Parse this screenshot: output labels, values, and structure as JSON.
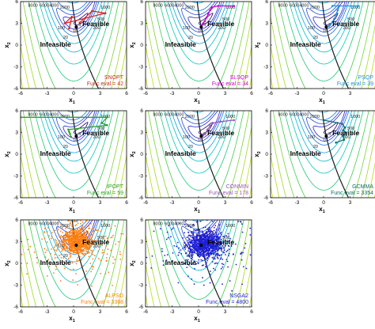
{
  "chart_data": [
    {
      "type": "line",
      "algorithm": "SNOPT",
      "func_eval_text": "Func eval = 42",
      "color": "#d62728",
      "path": [
        [
          0.7,
          3.1
        ],
        [
          2.1,
          4.7
        ],
        [
          3.6,
          4.4
        ],
        [
          -1.0,
          3.0
        ],
        [
          -0.2,
          3.9
        ],
        [
          -0.5,
          2.3
        ]
      ],
      "scatter": []
    },
    {
      "type": "line",
      "algorithm": "SLSQP",
      "func_eval_text": "Func eval = 34",
      "color": "#cc00cc",
      "path": [
        [
          4.0,
          5.4
        ],
        [
          2.2,
          5.4
        ],
        [
          1.5,
          5.2
        ],
        [
          1.3,
          4.8
        ],
        [
          1.1,
          4.3
        ],
        [
          0.9,
          3.8
        ],
        [
          0.7,
          3.3
        ],
        [
          0.5,
          3.0
        ],
        [
          0.3,
          2.7
        ]
      ],
      "scatter": []
    },
    {
      "type": "line",
      "algorithm": "PSQP",
      "func_eval_text": "Func eval = 39",
      "color": "#1f8fe0",
      "path": [
        [
          3.9,
          5.4
        ],
        [
          1.0,
          5.4
        ],
        [
          1.8,
          5.4
        ],
        [
          1.6,
          4.8
        ],
        [
          1.4,
          4.2
        ],
        [
          1.2,
          3.6
        ],
        [
          1.0,
          3.2
        ],
        [
          0.8,
          2.9
        ],
        [
          0.6,
          2.6
        ]
      ],
      "scatter": []
    },
    {
      "type": "line",
      "algorithm": "IPOPT",
      "func_eval_text": "Func eval = 59",
      "color": "#2ca02c",
      "path": [
        [
          -6.0,
          5.1
        ],
        [
          3.8,
          5.1
        ],
        [
          3.2,
          4.3
        ],
        [
          3.8,
          4.0
        ],
        [
          -0.6,
          3.4
        ],
        [
          -0.5,
          3.1
        ],
        [
          -0.4,
          2.8
        ],
        [
          -0.3,
          2.4
        ]
      ],
      "scatter": []
    },
    {
      "type": "line",
      "algorithm": "CONMIN",
      "func_eval_text": "Func eval = 178",
      "color": "#9b59b6",
      "path": [
        [
          4.0,
          4.7
        ],
        [
          2.5,
          4.5
        ],
        [
          1.6,
          4.3
        ],
        [
          1.3,
          3.9
        ],
        [
          1.0,
          3.4
        ],
        [
          0.8,
          2.9
        ],
        [
          0.5,
          2.6
        ],
        [
          0.3,
          2.3
        ]
      ],
      "scatter": []
    },
    {
      "type": "line",
      "algorithm": "GCMMA",
      "func_eval_text": "Func eval = 3354",
      "color": "#0e6b6b",
      "path": [
        [
          0.0,
          4.7
        ],
        [
          2.1,
          4.2
        ],
        [
          2.4,
          3.7
        ],
        [
          2.2,
          3.3
        ],
        [
          2.5,
          3.0
        ],
        [
          2.2,
          2.5
        ],
        [
          2.3,
          2.0
        ],
        [
          1.4,
          1.6
        ]
      ],
      "scatter": []
    },
    {
      "type": "scatter",
      "algorithm": "ALPSO",
      "func_eval_text": "Func eval = 3368",
      "color": "#ff7f0e",
      "path": [],
      "scatter": {
        "count": 700,
        "center": [
          0.4,
          3.0
        ],
        "spread": [
          1.4,
          1.4
        ],
        "wide_count": 260,
        "wide_spread": [
          3.8,
          3.8
        ]
      }
    },
    {
      "type": "scatter",
      "algorithm": "NSGA2",
      "func_eval_text": "Func eval = 4800",
      "color": "#1f1fd6",
      "path": [],
      "scatter": {
        "count": 900,
        "center": [
          0.8,
          2.6
        ],
        "spread": [
          1.6,
          1.5
        ],
        "wide_count": 220,
        "wide_spread": [
          4.0,
          4.0
        ]
      }
    }
  ],
  "shared_axes": {
    "xlabel": "x",
    "xlabel_sub": "1",
    "ylabel": "x",
    "ylabel_sub": "2",
    "xlim": [
      -6,
      6
    ],
    "ylim": [
      -6,
      6
    ],
    "xticks": [
      -6,
      -3,
      0,
      3,
      6
    ],
    "yticks": [
      -6,
      -3,
      0,
      3,
      6
    ],
    "feasible_label": "Feasible",
    "infeasible_label": "Infeasible",
    "contour_levels": [
      1,
      5,
      10,
      20,
      50,
      100,
      200,
      400,
      800,
      1400,
      2200,
      3200,
      4500,
      6000,
      8000,
      10000
    ],
    "contour_labels_shown": [
      "8000",
      "6000",
      "4000",
      "2000",
      "1000",
      "500",
      "100",
      "200",
      "20",
      "10",
      "5"
    ],
    "constraint": "x2 = sqrt-like curve from upper-left to lower-right"
  },
  "colors": {
    "background": "#ffffff",
    "contour_low": "#1a0066",
    "contour_mid": "#00c8c8",
    "contour_high": "#f0e000",
    "constraint_line": "#1a1a1a",
    "optimum_marker": "#000000"
  }
}
